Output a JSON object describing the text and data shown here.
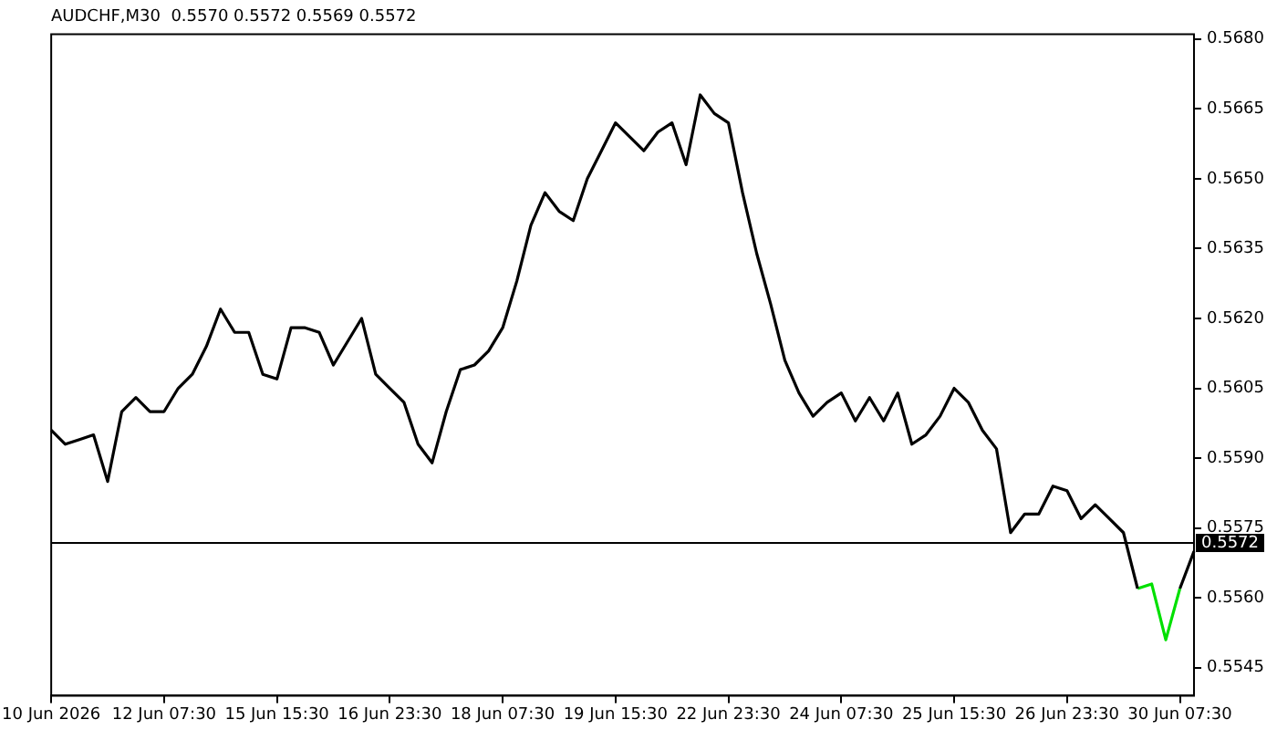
{
  "chart_data": {
    "type": "line",
    "title": "AUDCHF,M30  0.5570 0.5572 0.5569 0.5572",
    "categories": [
      "10 Jun 2026",
      null,
      null,
      null,
      null,
      null,
      null,
      null,
      "12 Jun 07:30",
      null,
      null,
      null,
      null,
      null,
      null,
      null,
      "15 Jun 15:30",
      null,
      null,
      null,
      null,
      null,
      null,
      null,
      "16 Jun 23:30",
      null,
      null,
      null,
      null,
      null,
      null,
      null,
      "18 Jun 07:30",
      null,
      null,
      null,
      null,
      null,
      null,
      null,
      "19 Jun 15:30",
      null,
      null,
      null,
      null,
      null,
      null,
      null,
      "22 Jun 23:30",
      null,
      null,
      null,
      null,
      null,
      null,
      null,
      "24 Jun 07:30",
      null,
      null,
      null,
      null,
      null,
      null,
      null,
      "25 Jun 15:30",
      null,
      null,
      null,
      null,
      null,
      null,
      null,
      "26 Jun 23:30",
      null,
      null,
      null,
      null,
      null,
      null,
      null,
      "30 Jun 07:30",
      null
    ],
    "series": [
      {
        "color": "#000000",
        "values": [
          0.5596,
          0.5593,
          0.5594,
          0.5595,
          0.5585,
          0.56,
          0.5603,
          0.56,
          0.56,
          0.5605,
          0.5608,
          0.5614,
          0.5622,
          0.5617,
          0.5617,
          0.5608,
          0.5607,
          0.5618,
          0.5618,
          0.5617,
          0.561,
          0.5615,
          0.562,
          0.5608,
          0.5605,
          0.5602,
          0.5593,
          0.5589,
          0.56,
          0.5609,
          0.561,
          0.5613,
          0.5618,
          0.5628,
          0.564,
          0.5647,
          0.5643,
          0.5641,
          0.565,
          0.5656,
          0.5662,
          0.5659,
          0.5656,
          0.566,
          0.5662,
          0.5653,
          0.5668,
          0.5664,
          0.5662,
          0.5647,
          0.5634,
          0.5623,
          0.5611,
          0.5604,
          0.5599,
          0.5602,
          0.5604,
          0.5598,
          0.5603,
          0.5598,
          0.5604,
          0.5593,
          0.5595,
          0.5599,
          0.5605,
          0.5602,
          0.5596,
          0.5592,
          0.5574,
          0.5578,
          0.5578,
          0.5584,
          0.5583,
          0.5577,
          0.558,
          0.5577,
          0.5574,
          0.5562,
          null,
          null,
          0.5562,
          0.557
        ]
      },
      {
        "color": "#00e000",
        "values": [
          null,
          null,
          null,
          null,
          null,
          null,
          null,
          null,
          null,
          null,
          null,
          null,
          null,
          null,
          null,
          null,
          null,
          null,
          null,
          null,
          null,
          null,
          null,
          null,
          null,
          null,
          null,
          null,
          null,
          null,
          null,
          null,
          null,
          null,
          null,
          null,
          null,
          null,
          null,
          null,
          null,
          null,
          null,
          null,
          null,
          null,
          null,
          null,
          null,
          null,
          null,
          null,
          null,
          null,
          null,
          null,
          null,
          null,
          null,
          null,
          null,
          null,
          null,
          null,
          null,
          null,
          null,
          null,
          null,
          null,
          null,
          null,
          null,
          null,
          null,
          null,
          null,
          0.5562,
          0.5563,
          0.5551,
          0.5562,
          null
        ]
      }
    ],
    "ylim": [
      0.5539,
      0.5681
    ],
    "yticks": [
      0.5545,
      {
        "value": 0.556,
        "label": "0.5560"
      },
      0.5575,
      {
        "value": 0.559,
        "label": "0.5590"
      },
      0.5605,
      {
        "value": 0.562,
        "label": "0.5620"
      },
      0.5635,
      {
        "value": 0.565,
        "label": "0.5650"
      },
      0.5665,
      {
        "value": 0.568,
        "label": "0.5680"
      }
    ],
    "ref_lines": [
      {
        "axis": "y",
        "value": 0.5572,
        "label": "0.5572",
        "color": "#000000"
      }
    ],
    "grid": false,
    "legend": false
  }
}
